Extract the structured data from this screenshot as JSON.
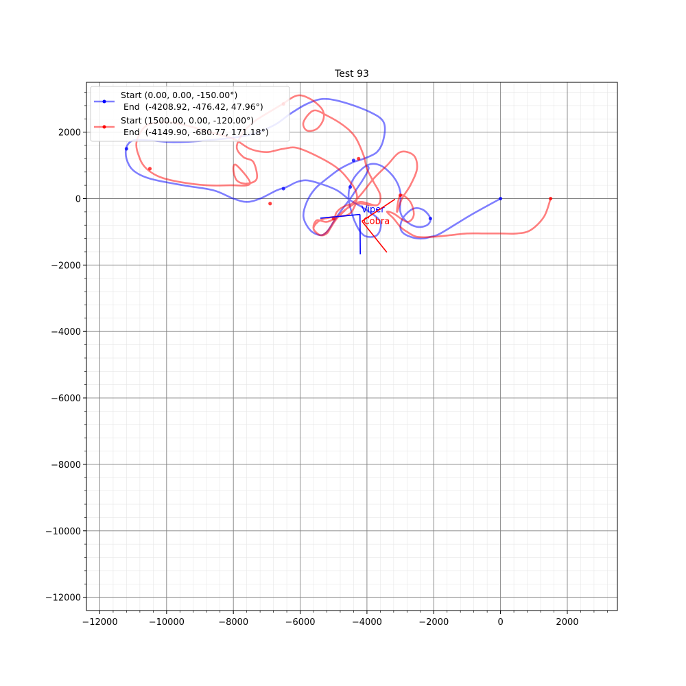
{
  "chart_data": {
    "type": "line",
    "title": "Test 93",
    "xlabel": "",
    "ylabel": "",
    "xlim": [
      -12400,
      3500
    ],
    "ylim": [
      -12400,
      3500
    ],
    "grid": true,
    "minor_grid": true,
    "x_ticks": [
      -12000,
      -10000,
      -8000,
      -6000,
      -4000,
      -2000,
      0,
      2000
    ],
    "y_ticks": [
      -12000,
      -10000,
      -8000,
      -6000,
      -4000,
      -2000,
      0,
      2000
    ],
    "x_tick_labels": [
      "−12000",
      "−10000",
      "−8000",
      "−6000",
      "−4000",
      "−2000",
      "0",
      "2000"
    ],
    "y_tick_labels": [
      "−12000",
      "−10000",
      "−8000",
      "−6000",
      "−4000",
      "−2000",
      "0",
      "2000"
    ],
    "legend_position": "upper-left",
    "series": [
      {
        "legend_line1": "Start (0.00, 0.00, -150.00°)",
        "legend_line2": " End  (-4208.92, -476.42, 47.96°)",
        "color": "#0000ff",
        "path": [
          [
            0,
            0
          ],
          [
            -900,
            -500
          ],
          [
            -1800,
            -1050
          ],
          [
            -2100,
            -1150
          ],
          [
            -2300,
            -1200
          ],
          [
            -2600,
            -1180
          ],
          [
            -2900,
            -1050
          ],
          [
            -3000,
            -850
          ],
          [
            -2900,
            -550
          ],
          [
            -2600,
            -300
          ],
          [
            -2300,
            -350
          ],
          [
            -2100,
            -600
          ],
          [
            -2200,
            -800
          ],
          [
            -2500,
            -850
          ],
          [
            -2800,
            -700
          ],
          [
            -3000,
            -400
          ],
          [
            -3000,
            200
          ],
          [
            -3200,
            650
          ],
          [
            -3600,
            1000
          ],
          [
            -4000,
            1000
          ],
          [
            -4400,
            600
          ],
          [
            -4550,
            100
          ],
          [
            -4400,
            -600
          ],
          [
            -4100,
            -1100
          ],
          [
            -3700,
            -1100
          ],
          [
            -3600,
            -700
          ],
          [
            -4000,
            -350
          ],
          [
            -4500,
            -50
          ],
          [
            -4900,
            250
          ],
          [
            -5400,
            450
          ],
          [
            -5800,
            550
          ],
          [
            -6100,
            500
          ],
          [
            -6400,
            350
          ],
          [
            -6700,
            250
          ],
          [
            -7200,
            0
          ],
          [
            -7600,
            -100
          ],
          [
            -8000,
            0
          ],
          [
            -8600,
            250
          ],
          [
            -9500,
            400
          ],
          [
            -10500,
            600
          ],
          [
            -11000,
            850
          ],
          [
            -11200,
            1200
          ],
          [
            -11200,
            1550
          ],
          [
            -11000,
            1750
          ],
          [
            -10500,
            1750
          ],
          [
            -9800,
            1700
          ],
          [
            -8800,
            1750
          ],
          [
            -7600,
            1900
          ],
          [
            -6800,
            2200
          ],
          [
            -6300,
            2550
          ],
          [
            -5800,
            2850
          ],
          [
            -5300,
            3000
          ],
          [
            -4700,
            2900
          ],
          [
            -3900,
            2600
          ],
          [
            -3500,
            2300
          ],
          [
            -3500,
            1800
          ],
          [
            -3700,
            1400
          ],
          [
            -4100,
            1200
          ],
          [
            -4400,
            1100
          ],
          [
            -4800,
            900
          ],
          [
            -5200,
            600
          ],
          [
            -5550,
            300
          ],
          [
            -5800,
            -100
          ],
          [
            -5900,
            -550
          ],
          [
            -5700,
            -950
          ],
          [
            -5400,
            -1100
          ],
          [
            -5200,
            -1000
          ],
          [
            -5000,
            -700
          ],
          [
            -4800,
            -400
          ],
          [
            -4500,
            0
          ],
          [
            -4300,
            300
          ],
          [
            -4100,
            600
          ],
          [
            -3950,
            900
          ],
          [
            -4000,
            1000
          ]
        ],
        "markers": [
          [
            0,
            0
          ],
          [
            -2100,
            -600
          ],
          [
            -6500,
            300
          ],
          [
            -4400,
            1150
          ],
          [
            -4500,
            350
          ],
          [
            -11200,
            1500
          ]
        ],
        "end_heading_deg": 47.96,
        "end_point": [
          -4208.92,
          -476.42
        ],
        "label": "Viper"
      },
      {
        "legend_line1": "Start (1500.00, 0.00, -120.00°)",
        "legend_line2": " End  (-4149.90, -680.77, 171.18°)",
        "color": "#ff0000",
        "path": [
          [
            1500,
            0
          ],
          [
            1300,
            -550
          ],
          [
            900,
            -950
          ],
          [
            500,
            -1050
          ],
          [
            0,
            -1050
          ],
          [
            -500,
            -1050
          ],
          [
            -1000,
            -1050
          ],
          [
            -1500,
            -1100
          ],
          [
            -2000,
            -1150
          ],
          [
            -2500,
            -1150
          ],
          [
            -2800,
            -1000
          ],
          [
            -3000,
            -850
          ],
          [
            -3200,
            -600
          ],
          [
            -3400,
            -400
          ],
          [
            -3200,
            -450
          ],
          [
            -2800,
            -700
          ],
          [
            -2600,
            -500
          ],
          [
            -2700,
            -100
          ],
          [
            -3000,
            100
          ],
          [
            -3100,
            -400
          ],
          [
            -2950,
            0
          ],
          [
            -2700,
            400
          ],
          [
            -2500,
            900
          ],
          [
            -2600,
            1300
          ],
          [
            -3000,
            1400
          ],
          [
            -3400,
            1000
          ],
          [
            -3800,
            600
          ],
          [
            -4200,
            100
          ],
          [
            -4600,
            -300
          ],
          [
            -4900,
            -600
          ],
          [
            -5100,
            -900
          ],
          [
            -5200,
            -1050
          ],
          [
            -5400,
            -1100
          ],
          [
            -5600,
            -900
          ],
          [
            -5500,
            -650
          ],
          [
            -5200,
            -700
          ],
          [
            -4900,
            -550
          ],
          [
            -4600,
            -300
          ],
          [
            -4200,
            -100
          ],
          [
            -3700,
            -200
          ],
          [
            -3600,
            100
          ],
          [
            -3800,
            500
          ],
          [
            -4000,
            900
          ],
          [
            -4100,
            1300
          ],
          [
            -4350,
            1850
          ],
          [
            -4700,
            2200
          ],
          [
            -5200,
            2500
          ],
          [
            -5600,
            2650
          ],
          [
            -5900,
            2300
          ],
          [
            -5800,
            2050
          ],
          [
            -5500,
            2100
          ],
          [
            -5300,
            2400
          ],
          [
            -5350,
            2700
          ],
          [
            -5700,
            3000
          ],
          [
            -6100,
            3100
          ],
          [
            -6600,
            2800
          ],
          [
            -7100,
            2500
          ],
          [
            -7400,
            2300
          ],
          [
            -7700,
            2000
          ],
          [
            -7900,
            1550
          ],
          [
            -7700,
            1250
          ],
          [
            -7400,
            1100
          ],
          [
            -7300,
            600
          ],
          [
            -7600,
            450
          ],
          [
            -7900,
            550
          ],
          [
            -8000,
            900
          ],
          [
            -7900,
            1000
          ],
          [
            -7500,
            450
          ],
          [
            -8100,
            400
          ],
          [
            -8800,
            400
          ],
          [
            -9600,
            500
          ],
          [
            -10200,
            650
          ],
          [
            -10600,
            900
          ],
          [
            -10800,
            1200
          ],
          [
            -10900,
            1700
          ],
          [
            -10600,
            2200
          ],
          [
            -10000,
            2300
          ],
          [
            -9400,
            2200
          ],
          [
            -8700,
            2000
          ],
          [
            -8000,
            1800
          ],
          [
            -7500,
            1500
          ],
          [
            -7000,
            1400
          ],
          [
            -6500,
            1500
          ],
          [
            -6000,
            1500
          ],
          [
            -5000,
            1000
          ],
          [
            -4500,
            500
          ],
          [
            -4300,
            100
          ],
          [
            -4400,
            -300
          ],
          [
            -4600,
            -500
          ],
          [
            -5000,
            -550
          ],
          [
            -5400,
            -650
          ],
          [
            -5600,
            -900
          ],
          [
            -5400,
            -1100
          ],
          [
            -5200,
            -1000
          ],
          [
            -5000,
            -700
          ],
          [
            -4900,
            -400
          ],
          [
            -4600,
            -200
          ],
          [
            -4200,
            -150
          ],
          [
            -3900,
            -200
          ],
          [
            -3700,
            -200
          ]
        ],
        "markers": [
          [
            1500,
            0
          ],
          [
            -3000,
            100
          ],
          [
            -4250,
            1200
          ],
          [
            -5000,
            -600
          ],
          [
            -6900,
            -150
          ],
          [
            -10500,
            900
          ],
          [
            -6500,
            2850
          ]
        ],
        "end_heading_deg": 171.18,
        "end_point": [
          -4149.9,
          -680.77
        ],
        "label": "Cobra"
      }
    ]
  }
}
